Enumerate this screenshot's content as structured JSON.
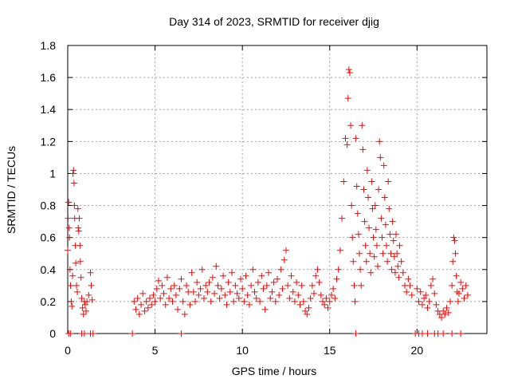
{
  "chart_data": {
    "type": "scatter",
    "title": "Day 314 of 2023, SRMTID for receiver djig",
    "xlabel": "GPS time / hours",
    "ylabel": "SRMTID / TECUs",
    "xlim": [
      0,
      24
    ],
    "ylim": [
      0,
      1.8
    ],
    "xticks": [
      0,
      5,
      10,
      15,
      20
    ],
    "yticks": [
      0,
      0.2,
      0.4,
      0.6,
      0.8,
      1,
      1.2,
      1.4,
      1.6,
      1.8
    ],
    "xtick_labels": [
      "0",
      "5",
      "10",
      "15",
      "20"
    ],
    "ytick_labels": [
      "0",
      "0.2",
      "0.4",
      "0.6",
      "0.8",
      "1",
      "1.2",
      "1.4",
      "1.6",
      "1.8"
    ],
    "grid": true,
    "marker": "+",
    "color": "#ff0000",
    "series": [
      {
        "name": "SRMTID",
        "points": [
          [
            0.0,
            0.52
          ],
          [
            0.02,
            0.72
          ],
          [
            0.05,
            0.82
          ],
          [
            0.08,
            0.66
          ],
          [
            0.1,
            0.6
          ],
          [
            0.13,
            0.4
          ],
          [
            0.16,
            0.3
          ],
          [
            0.2,
            0.2
          ],
          [
            0.24,
            0.17
          ],
          [
            0.28,
            0.36
          ],
          [
            0.3,
            1.0
          ],
          [
            0.33,
            1.02
          ],
          [
            0.36,
            0.94
          ],
          [
            0.38,
            0.8
          ],
          [
            0.4,
            0.72
          ],
          [
            0.43,
            0.55
          ],
          [
            0.46,
            0.44
          ],
          [
            0.5,
            0.3
          ],
          [
            0.55,
            0.26
          ],
          [
            0.58,
            0.78
          ],
          [
            0.6,
            0.66
          ],
          [
            0.63,
            0.64
          ],
          [
            0.66,
            0.72
          ],
          [
            0.7,
            0.55
          ],
          [
            0.72,
            0.45
          ],
          [
            0.76,
            0.35
          ],
          [
            0.8,
            0.22
          ],
          [
            0.85,
            0.16
          ],
          [
            0.9,
            0.12
          ],
          [
            0.95,
            0.2
          ],
          [
            1.0,
            0.18
          ],
          [
            1.05,
            0.14
          ],
          [
            1.1,
            0.2
          ],
          [
            1.2,
            0.24
          ],
          [
            1.3,
            0.38
          ],
          [
            1.35,
            0.3
          ],
          [
            1.4,
            0.21
          ],
          [
            3.8,
            0.2
          ],
          [
            3.9,
            0.15
          ],
          [
            4.0,
            0.22
          ],
          [
            4.1,
            0.12
          ],
          [
            4.2,
            0.18
          ],
          [
            4.3,
            0.25
          ],
          [
            4.4,
            0.14
          ],
          [
            4.5,
            0.2
          ],
          [
            4.6,
            0.16
          ],
          [
            4.7,
            0.22
          ],
          [
            4.8,
            0.18
          ],
          [
            4.9,
            0.24
          ],
          [
            5.0,
            0.2
          ],
          [
            5.1,
            0.28
          ],
          [
            5.2,
            0.33
          ],
          [
            5.3,
            0.22
          ],
          [
            5.4,
            0.3
          ],
          [
            5.5,
            0.25
          ],
          [
            5.6,
            0.18
          ],
          [
            5.7,
            0.35
          ],
          [
            5.8,
            0.22
          ],
          [
            5.9,
            0.28
          ],
          [
            6.0,
            0.2
          ],
          [
            6.1,
            0.3
          ],
          [
            6.2,
            0.24
          ],
          [
            6.3,
            0.15
          ],
          [
            6.4,
            0.28
          ],
          [
            6.5,
            0.34
          ],
          [
            6.6,
            0.2
          ],
          [
            6.7,
            0.12
          ],
          [
            6.8,
            0.3
          ],
          [
            6.9,
            0.26
          ],
          [
            7.0,
            0.18
          ],
          [
            7.1,
            0.38
          ],
          [
            7.2,
            0.26
          ],
          [
            7.3,
            0.2
          ],
          [
            7.4,
            0.32
          ],
          [
            7.5,
            0.24
          ],
          [
            7.6,
            0.28
          ],
          [
            7.7,
            0.4
          ],
          [
            7.8,
            0.22
          ],
          [
            7.9,
            0.3
          ],
          [
            8.0,
            0.26
          ],
          [
            8.1,
            0.32
          ],
          [
            8.2,
            0.2
          ],
          [
            8.3,
            0.35
          ],
          [
            8.4,
            0.25
          ],
          [
            8.5,
            0.42
          ],
          [
            8.6,
            0.3
          ],
          [
            8.7,
            0.22
          ],
          [
            8.8,
            0.28
          ],
          [
            8.9,
            0.36
          ],
          [
            9.0,
            0.24
          ],
          [
            9.1,
            0.18
          ],
          [
            9.2,
            0.32
          ],
          [
            9.3,
            0.26
          ],
          [
            9.4,
            0.38
          ],
          [
            9.5,
            0.2
          ],
          [
            9.6,
            0.3
          ],
          [
            9.7,
            0.25
          ],
          [
            9.8,
            0.22
          ],
          [
            9.9,
            0.34
          ],
          [
            10.0,
            0.28
          ],
          [
            10.1,
            0.2
          ],
          [
            10.2,
            0.36
          ],
          [
            10.3,
            0.24
          ],
          [
            10.4,
            0.18
          ],
          [
            10.5,
            0.3
          ],
          [
            10.6,
            0.4
          ],
          [
            10.7,
            0.26
          ],
          [
            10.8,
            0.22
          ],
          [
            10.9,
            0.32
          ],
          [
            11.0,
            0.2
          ],
          [
            11.1,
            0.36
          ],
          [
            11.2,
            0.28
          ],
          [
            11.3,
            0.15
          ],
          [
            11.4,
            0.3
          ],
          [
            11.5,
            0.38
          ],
          [
            11.6,
            0.22
          ],
          [
            11.7,
            0.26
          ],
          [
            11.8,
            0.32
          ],
          [
            11.9,
            0.2
          ],
          [
            12.0,
            0.34
          ],
          [
            12.1,
            0.24
          ],
          [
            12.2,
            0.4
          ],
          [
            12.3,
            0.28
          ],
          [
            12.4,
            0.46
          ],
          [
            12.5,
            0.52
          ],
          [
            12.6,
            0.3
          ],
          [
            12.7,
            0.22
          ],
          [
            12.8,
            0.36
          ],
          [
            12.9,
            0.26
          ],
          [
            13.0,
            0.2
          ],
          [
            13.1,
            0.32
          ],
          [
            13.2,
            0.24
          ],
          [
            13.3,
            0.18
          ],
          [
            13.4,
            0.3
          ],
          [
            13.5,
            0.2
          ],
          [
            13.6,
            0.14
          ],
          [
            13.7,
            0.12
          ],
          [
            13.8,
            0.16
          ],
          [
            13.9,
            0.22
          ],
          [
            14.0,
            0.3
          ],
          [
            14.1,
            0.25
          ],
          [
            14.2,
            0.36
          ],
          [
            14.3,
            0.4
          ],
          [
            14.4,
            0.32
          ],
          [
            14.5,
            0.24
          ],
          [
            14.6,
            0.2
          ],
          [
            14.7,
            0.18
          ],
          [
            14.8,
            0.22
          ],
          [
            14.9,
            0.16
          ],
          [
            15.0,
            0.2
          ],
          [
            15.1,
            0.24
          ],
          [
            15.2,
            0.28
          ],
          [
            15.3,
            0.22
          ],
          [
            15.4,
            0.34
          ],
          [
            15.5,
            0.4
          ],
          [
            15.6,
            0.52
          ],
          [
            15.7,
            0.72
          ],
          [
            15.8,
            0.95
          ],
          [
            15.9,
            1.22
          ],
          [
            16.0,
            1.18
          ],
          [
            16.05,
            1.47
          ],
          [
            16.1,
            1.65
          ],
          [
            16.15,
            1.63
          ],
          [
            16.2,
            1.3
          ],
          [
            16.25,
            0.8
          ],
          [
            16.3,
            0.6
          ],
          [
            16.35,
            0.45
          ],
          [
            16.4,
            0.3
          ],
          [
            16.45,
            0.2
          ],
          [
            16.5,
            1.22
          ],
          [
            16.55,
            0.92
          ],
          [
            16.6,
            0.75
          ],
          [
            16.65,
            0.62
          ],
          [
            16.7,
            0.5
          ],
          [
            16.75,
            0.4
          ],
          [
            16.8,
            0.3
          ],
          [
            16.85,
            1.3
          ],
          [
            16.9,
            1.15
          ],
          [
            16.95,
            0.9
          ],
          [
            17.0,
            0.7
          ],
          [
            17.05,
            0.55
          ],
          [
            17.1,
            0.45
          ],
          [
            17.15,
            1.02
          ],
          [
            17.2,
            0.85
          ],
          [
            17.25,
            0.66
          ],
          [
            17.3,
            0.5
          ],
          [
            17.35,
            0.38
          ],
          [
            17.4,
            0.95
          ],
          [
            17.45,
            0.78
          ],
          [
            17.5,
            0.6
          ],
          [
            17.55,
            0.48
          ],
          [
            17.6,
            0.8
          ],
          [
            17.65,
            0.65
          ],
          [
            17.7,
            0.55
          ],
          [
            17.75,
            0.42
          ],
          [
            17.8,
            0.9
          ],
          [
            17.85,
            1.2
          ],
          [
            17.9,
            1.1
          ],
          [
            17.95,
            0.72
          ],
          [
            18.0,
            0.6
          ],
          [
            18.05,
            0.5
          ],
          [
            18.1,
            1.05
          ],
          [
            18.15,
            0.85
          ],
          [
            18.2,
            0.68
          ],
          [
            18.25,
            0.55
          ],
          [
            18.3,
            0.45
          ],
          [
            18.35,
            0.95
          ],
          [
            18.4,
            0.78
          ],
          [
            18.45,
            0.62
          ],
          [
            18.5,
            0.5
          ],
          [
            18.55,
            0.4
          ],
          [
            18.6,
            0.7
          ],
          [
            18.65,
            0.58
          ],
          [
            18.7,
            0.48
          ],
          [
            18.75,
            0.38
          ],
          [
            18.8,
            0.62
          ],
          [
            18.85,
            0.5
          ],
          [
            18.9,
            0.42
          ],
          [
            18.95,
            0.35
          ],
          [
            19.0,
            0.55
          ],
          [
            19.1,
            0.45
          ],
          [
            19.2,
            0.38
          ],
          [
            19.3,
            0.3
          ],
          [
            19.4,
            0.26
          ],
          [
            19.5,
            0.34
          ],
          [
            19.6,
            0.3
          ],
          [
            19.7,
            0.24
          ],
          [
            20.0,
            0.28
          ],
          [
            20.1,
            0.2
          ],
          [
            20.2,
            0.26
          ],
          [
            20.3,
            0.18
          ],
          [
            20.4,
            0.22
          ],
          [
            20.5,
            0.24
          ],
          [
            20.6,
            0.16
          ],
          [
            20.7,
            0.2
          ],
          [
            20.8,
            0.3
          ],
          [
            20.9,
            0.34
          ],
          [
            21.0,
            0.25
          ],
          [
            21.1,
            0.18
          ],
          [
            21.2,
            0.14
          ],
          [
            21.3,
            0.12
          ],
          [
            21.4,
            0.1
          ],
          [
            21.5,
            0.14
          ],
          [
            21.6,
            0.12
          ],
          [
            21.7,
            0.16
          ],
          [
            21.8,
            0.13
          ],
          [
            21.9,
            0.2
          ],
          [
            22.0,
            0.3
          ],
          [
            22.05,
            0.45
          ],
          [
            22.1,
            0.6
          ],
          [
            22.15,
            0.58
          ],
          [
            22.2,
            0.5
          ],
          [
            22.25,
            0.36
          ],
          [
            22.3,
            0.26
          ],
          [
            22.35,
            0.2
          ],
          [
            22.4,
            0.25
          ],
          [
            22.5,
            0.32
          ],
          [
            22.6,
            0.28
          ],
          [
            22.7,
            0.22
          ],
          [
            22.8,
            0.3
          ],
          [
            22.9,
            0.24
          ],
          [
            0.05,
            0.0
          ],
          [
            0.15,
            0.0
          ],
          [
            0.8,
            0.0
          ],
          [
            0.95,
            0.0
          ],
          [
            1.3,
            0.0
          ],
          [
            1.45,
            0.0
          ],
          [
            3.7,
            0.0
          ],
          [
            6.5,
            0.0
          ],
          [
            16.5,
            0.0
          ],
          [
            19.9,
            0.0
          ],
          [
            20.1,
            0.0
          ],
          [
            20.3,
            0.0
          ],
          [
            20.6,
            0.0
          ],
          [
            21.0,
            0.0
          ],
          [
            21.2,
            0.0
          ],
          [
            21.5,
            0.0
          ],
          [
            22.0,
            0.0
          ],
          [
            22.5,
            0.0
          ]
        ]
      }
    ]
  }
}
